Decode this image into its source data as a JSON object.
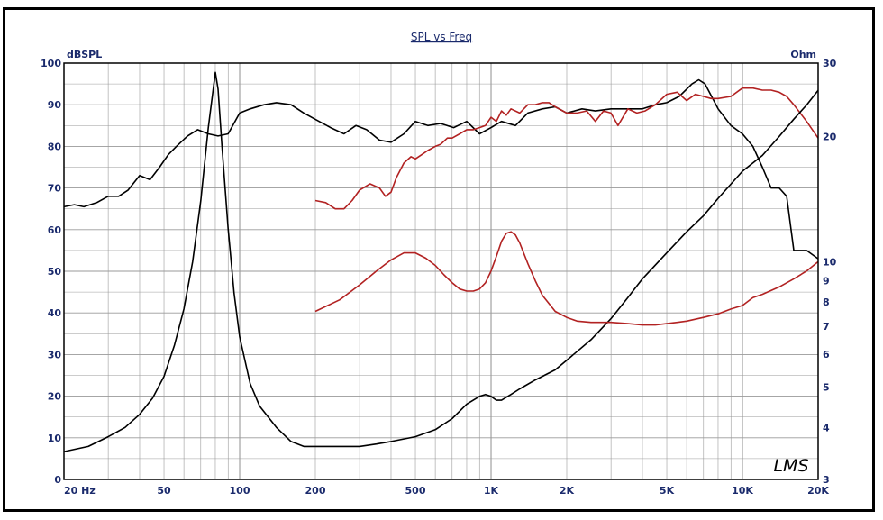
{
  "chart_data": {
    "type": "line",
    "title": "SPL vs Freq",
    "left_axis_label": "dBSPL",
    "right_axis_label": "Ohm",
    "x_scale": "log",
    "xlim": [
      20,
      20000
    ],
    "ylim_left": [
      0,
      100
    ],
    "ylim_right": [
      3,
      30
    ],
    "right_scale": "log",
    "grid": true,
    "x_ticks": [
      {
        "value": 20,
        "label": "20  Hz"
      },
      {
        "value": 50,
        "label": "50"
      },
      {
        "value": 100,
        "label": "100"
      },
      {
        "value": 200,
        "label": "200"
      },
      {
        "value": 500,
        "label": "500"
      },
      {
        "value": 1000,
        "label": "1K"
      },
      {
        "value": 2000,
        "label": "2K"
      },
      {
        "value": 5000,
        "label": "5K"
      },
      {
        "value": 10000,
        "label": "10K"
      },
      {
        "value": 20000,
        "label": "20K"
      }
    ],
    "left_ticks": [
      0,
      10,
      20,
      30,
      40,
      50,
      60,
      70,
      80,
      90,
      100
    ],
    "right_ticks": [
      3,
      4,
      5,
      6,
      7,
      8,
      9,
      10,
      20,
      30
    ],
    "colors": {
      "black": "#000000",
      "red": "#b22222",
      "grid": "#9a9a9a",
      "text": "#1a2a6c"
    },
    "series": [
      {
        "color": "#000000",
        "axis": "left",
        "x": [
          20,
          22,
          24,
          27,
          30,
          33,
          36,
          40,
          44,
          48,
          52,
          56,
          62,
          68,
          75,
          82,
          90,
          100,
          110,
          125,
          140,
          160,
          180,
          200,
          230,
          260,
          290,
          320,
          360,
          400,
          450,
          500,
          560,
          630,
          710,
          800,
          900,
          1000,
          1100,
          1250,
          1400,
          1600,
          1800,
          2000,
          2300,
          2600,
          3000,
          3500,
          4000,
          4500,
          5000,
          5600,
          6300,
          6700,
          7100,
          8000,
          9000,
          10000,
          11000,
          12000,
          13000,
          14000,
          15000,
          16000,
          18000,
          20000
        ],
        "y": [
          65.5,
          66,
          65.5,
          66.5,
          68,
          68,
          69.5,
          73,
          72,
          75,
          78,
          80,
          82.5,
          84,
          83,
          82.5,
          83,
          88,
          89,
          90,
          90.5,
          90,
          88,
          86.5,
          84.5,
          83,
          85,
          84,
          81.5,
          81,
          83,
          86,
          85,
          85.5,
          84.5,
          86,
          83,
          84.5,
          86,
          85,
          88,
          89,
          89.5,
          88,
          89,
          88.5,
          89,
          89,
          89,
          90,
          90.5,
          92,
          95,
          96,
          95,
          89,
          85,
          83,
          80,
          75,
          70,
          70,
          68,
          55,
          55,
          53
        ]
      },
      {
        "color": "#b22222",
        "axis": "left",
        "x": [
          200,
          220,
          240,
          260,
          280,
          300,
          330,
          360,
          380,
          400,
          420,
          450,
          480,
          500,
          530,
          560,
          600,
          630,
          670,
          700,
          750,
          800,
          850,
          900,
          950,
          1000,
          1050,
          1100,
          1150,
          1200,
          1300,
          1400,
          1500,
          1600,
          1700,
          1800,
          2000,
          2200,
          2400,
          2600,
          2800,
          3000,
          3200,
          3500,
          3800,
          4100,
          4500,
          5000,
          5500,
          6000,
          6500,
          7000,
          7500,
          8000,
          9000,
          10000,
          11000,
          12000,
          13000,
          14000,
          15000,
          16000,
          18000,
          20000
        ],
        "y": [
          67,
          66.5,
          65,
          65,
          67,
          69.5,
          71,
          70,
          68,
          69,
          72.5,
          76,
          77.5,
          77,
          78,
          79,
          80,
          80.5,
          82,
          82,
          83,
          84,
          84,
          84.5,
          85,
          87,
          86,
          88.5,
          87.5,
          89,
          88,
          90,
          90,
          90.5,
          90.5,
          89.5,
          88,
          88,
          88.5,
          86,
          88.5,
          88,
          85,
          89,
          88,
          88.5,
          90,
          92.5,
          93,
          91,
          92.5,
          92,
          91.5,
          91.5,
          92,
          94,
          94,
          93.5,
          93.5,
          93,
          92,
          90,
          86,
          82
        ]
      },
      {
        "color": "#000000",
        "axis": "right",
        "x": [
          20,
          25,
          30,
          35,
          40,
          45,
          50,
          55,
          60,
          65,
          70,
          75,
          80,
          82,
          85,
          90,
          95,
          100,
          110,
          120,
          140,
          160,
          180,
          200,
          250,
          300,
          350,
          400,
          500,
          600,
          700,
          800,
          900,
          950,
          1000,
          1050,
          1100,
          1200,
          1300,
          1500,
          1800,
          2000,
          2500,
          3000,
          3500,
          4000,
          5000,
          6000,
          7000,
          8000,
          10000,
          12000,
          14000,
          16000,
          18000,
          20000
        ],
        "y": [
          3.5,
          3.6,
          3.8,
          4.0,
          4.3,
          4.7,
          5.3,
          6.3,
          7.7,
          10.0,
          14.0,
          21.0,
          28.5,
          26.0,
          19.0,
          12.0,
          8.4,
          6.6,
          5.1,
          4.5,
          4.0,
          3.7,
          3.6,
          3.6,
          3.6,
          3.6,
          3.65,
          3.7,
          3.8,
          3.95,
          4.2,
          4.55,
          4.75,
          4.8,
          4.75,
          4.65,
          4.65,
          4.8,
          4.95,
          5.2,
          5.5,
          5.8,
          6.5,
          7.3,
          8.2,
          9.1,
          10.5,
          11.8,
          12.9,
          14.2,
          16.5,
          18.0,
          20.0,
          22.0,
          23.8,
          25.8
        ]
      },
      {
        "color": "#b22222",
        "axis": "right",
        "x": [
          200,
          250,
          300,
          350,
          400,
          450,
          500,
          550,
          600,
          650,
          700,
          750,
          800,
          850,
          900,
          950,
          1000,
          1050,
          1100,
          1150,
          1200,
          1250,
          1300,
          1400,
          1500,
          1600,
          1800,
          2000,
          2200,
          2500,
          3000,
          3500,
          4000,
          4500,
          5000,
          5500,
          6000,
          7000,
          8000,
          9000,
          10000,
          11000,
          12000,
          14000,
          16000,
          18000,
          20000
        ],
        "y": [
          7.6,
          8.1,
          8.8,
          9.5,
          10.1,
          10.5,
          10.5,
          10.2,
          9.8,
          9.3,
          8.9,
          8.6,
          8.5,
          8.5,
          8.6,
          8.9,
          9.5,
          10.3,
          11.2,
          11.7,
          11.8,
          11.6,
          11.1,
          9.9,
          9.0,
          8.3,
          7.6,
          7.35,
          7.2,
          7.15,
          7.15,
          7.1,
          7.05,
          7.05,
          7.1,
          7.15,
          7.2,
          7.35,
          7.5,
          7.7,
          7.85,
          8.2,
          8.35,
          8.7,
          9.1,
          9.5,
          10.0
        ]
      }
    ],
    "annotations": [
      "LMS"
    ]
  }
}
